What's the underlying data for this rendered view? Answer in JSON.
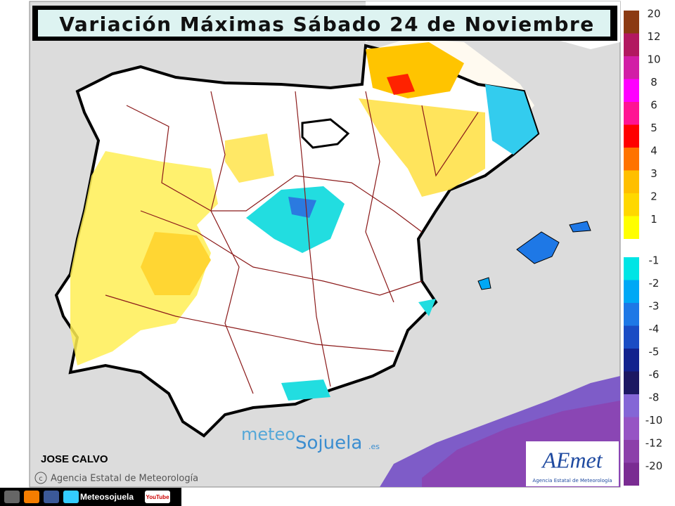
{
  "title": "Variación Máximas Sábado 24 de Noviembre",
  "legend": {
    "positive": [
      {
        "value": 20,
        "color": "#8b3a12"
      },
      {
        "value": 12,
        "color": "#b21860"
      },
      {
        "value": 10,
        "color": "#d21ea6"
      },
      {
        "value": 8,
        "color": "#ff00ff"
      },
      {
        "value": 6,
        "color": "#ff1493"
      },
      {
        "value": 5,
        "color": "#ff0000"
      },
      {
        "value": 4,
        "color": "#ff7300"
      },
      {
        "value": 3,
        "color": "#ffbf00"
      },
      {
        "value": 2,
        "color": "#ffd800"
      },
      {
        "value": 1,
        "color": "#ffff00"
      }
    ],
    "negative": [
      {
        "value": -1,
        "color": "#00e5e5"
      },
      {
        "value": -2,
        "color": "#00a8f5"
      },
      {
        "value": -3,
        "color": "#1e78e6"
      },
      {
        "value": -4,
        "color": "#1a4cc4"
      },
      {
        "value": -5,
        "color": "#12228e"
      },
      {
        "value": -6,
        "color": "#1c1862"
      },
      {
        "value": -8,
        "color": "#8466d6"
      },
      {
        "value": -10,
        "color": "#9654c4"
      },
      {
        "value": -12,
        "color": "#8c40aa"
      },
      {
        "value": -20,
        "color": "#7a2c92"
      }
    ]
  },
  "author": "JOSE CALVO",
  "copyright": "Agencia Estatal de Meteorología",
  "watermark": {
    "part1": "meteo",
    "part2": "Sojuela",
    "part3": ".es"
  },
  "logo": {
    "name": "AEmet",
    "subtitle": "Agencia Estatal de Meteorología"
  },
  "footer": {
    "handle": "Meteosojuela",
    "youtube": "YouTube"
  }
}
